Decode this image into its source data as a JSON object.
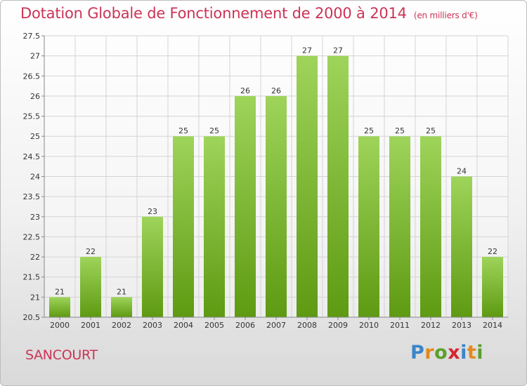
{
  "title": "Dotation Globale de Fonctionnement de 2000 à 2014",
  "unit": "(en milliers d'€)",
  "commune": "SANCOURT",
  "logo": {
    "text": "Proxiti",
    "letters": [
      {
        "ch": "P",
        "color": "#3a86c8"
      },
      {
        "ch": "r",
        "color": "#e08a1e"
      },
      {
        "ch": "o",
        "color": "#5aa02c"
      },
      {
        "ch": "x",
        "color": "#d6252e"
      },
      {
        "ch": "i",
        "color": "#3a86c8"
      },
      {
        "ch": "t",
        "color": "#e08a1e"
      },
      {
        "ch": "i",
        "color": "#5aa02c"
      }
    ]
  },
  "colors": {
    "bar_top": "#9ed45a",
    "bar_bottom": "#5e9a12",
    "title": "#cc3355",
    "grid": "#d4d4d4"
  },
  "chart_data": {
    "type": "bar",
    "title": "Dotation Globale de Fonctionnement de 2000 à 2014",
    "subtitle": "(en milliers d'€)",
    "categories": [
      "2000",
      "2001",
      "2002",
      "2003",
      "2004",
      "2005",
      "2006",
      "2007",
      "2008",
      "2009",
      "2010",
      "2011",
      "2012",
      "2013",
      "2014"
    ],
    "values": [
      21,
      22,
      21,
      23,
      25,
      25,
      26,
      26,
      27,
      27,
      25,
      25,
      25,
      24,
      22
    ],
    "ylim": [
      20.5,
      27.5
    ],
    "yticks": [
      20.5,
      21,
      21.5,
      22,
      22.5,
      23,
      23.5,
      24,
      24.5,
      25,
      25.5,
      26,
      26.5,
      27,
      27.5
    ],
    "grid": true,
    "legend": "none"
  }
}
